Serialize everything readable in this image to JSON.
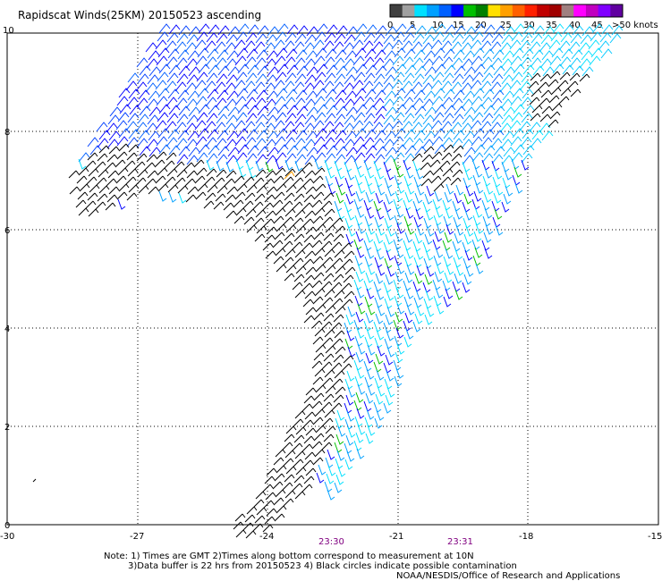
{
  "title": "Rapidscat Winds(25KM) 20150523 ascending",
  "colorbar": {
    "colors": [
      "#404040",
      "#a0a0a0",
      "#00e0ff",
      "#00a0ff",
      "#0060ff",
      "#0000ff",
      "#00c000",
      "#008000",
      "#ffe000",
      "#ffa000",
      "#ff6000",
      "#ff2000",
      "#c00000",
      "#a00000",
      "#a08080",
      "#ff00ff",
      "#c000c0",
      "#8000ff",
      "#6000a0"
    ],
    "labels": [
      "0",
      "5",
      "10",
      "15",
      "20",
      "25",
      "30",
      "35",
      "40",
      "45",
      ">50 knots"
    ]
  },
  "axes": {
    "x_ticks": [
      "-30",
      "-27",
      "-24",
      "-21",
      "-18",
      "-15"
    ],
    "y_ticks": [
      "0",
      "2",
      "4",
      "6",
      "8",
      "10"
    ]
  },
  "times": [
    "23:30",
    "23:31"
  ],
  "notes": {
    "line1": "Note: 1) Times are GMT 2)Times along bottom correspond to measurement at 10N",
    "line2": "3)Data buffer is 22 hrs from 20150523 4) Black circles indicate possible contamination",
    "credit": "NOAA/NESDIS/Office of Research and Applications"
  }
}
